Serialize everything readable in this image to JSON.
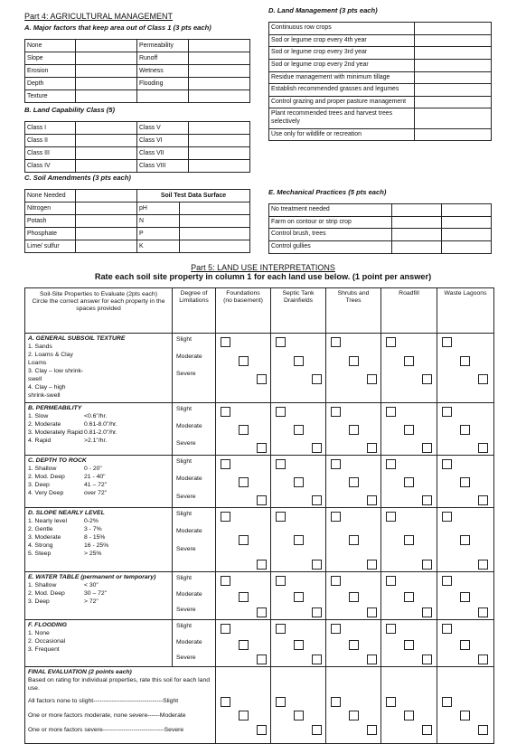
{
  "part4": {
    "title": "Part 4: AGRICULTURAL MANAGEMENT",
    "a_title": "A. Major factors that keep area out of Class 1 (3 pts each)",
    "a_rows": [
      [
        "None",
        "Permeability"
      ],
      [
        "Slope",
        "Runoff"
      ],
      [
        "Erosion",
        "Wetness"
      ],
      [
        "Depth",
        "Flooding"
      ],
      [
        "Texture",
        ""
      ]
    ],
    "b_title": "B. Land Capability Class (5)",
    "b_rows": [
      [
        "Class I",
        "Class V"
      ],
      [
        "Class II",
        "Class VI"
      ],
      [
        "Class III",
        "Class VII"
      ],
      [
        "Class IV",
        "Class VIII"
      ]
    ],
    "c_title": "C. Soil Amendments (3 pts each)",
    "c_header": [
      "None Needed",
      "Soil Test Data Surface"
    ],
    "c_rows": [
      [
        "Nitrogen",
        "pH"
      ],
      [
        "Potash",
        "N"
      ],
      [
        "Phosphate",
        "P"
      ],
      [
        "Lime/ sulfur",
        "K"
      ]
    ],
    "d_title": "D. Land Management (3 pts each)",
    "d_rows": [
      "Continuous row crops",
      "Sod or legume crop every 4th year",
      "Sod or legume crop every 3rd year",
      "Sod or legume crop every 2nd year",
      "Residue management with minimum tillage",
      "Establish recommended grasses and legumes",
      "Control grazing and proper pasture management",
      "Plant recommended trees and harvest trees selectively",
      "Use only for wildlife or recreation"
    ],
    "e_title": "E. Mechanical Practices (5 pts each)",
    "e_rows": [
      "No treatment needed",
      "Farm on contour or strip crop",
      "Control brush, trees",
      "Control gullies"
    ]
  },
  "part5": {
    "title": "Part 5: LAND USE INTERPRETATIONS",
    "subtitle": "Rate each soil site property in column 1 for each land use below. (1 point per answer)",
    "col1_header": "Soil-Site Properties to Evaluate (2pts each)",
    "col1_sub": "Circle the correct answer for each property in the spaces provided",
    "degree_header": "Degree of Limitations",
    "uses": [
      {
        "name": "Foundations",
        "sub": "(no basement)"
      },
      {
        "name": "Septic Tank",
        "sub": "Drainfields"
      },
      {
        "name": "Shrubs and",
        "sub": "Trees"
      },
      {
        "name": "Roadfill",
        "sub": ""
      },
      {
        "name": "Waste Lagoons",
        "sub": ""
      }
    ],
    "sections": [
      {
        "title": "A. GENERAL SUBSOIL TEXTURE",
        "items": [
          [
            "1. Sands",
            ""
          ],
          [
            "2. Loams & Clay Loams",
            ""
          ],
          [
            "3. Clay – low shrink-swell",
            ""
          ],
          [
            "4. Clay – high shrink-swell",
            ""
          ]
        ]
      },
      {
        "title": "B. PERMEABILITY",
        "items": [
          [
            "1. Slow",
            "<0.6\"/hr."
          ],
          [
            "2. Moderate",
            "0.61-8.0\"/hr."
          ],
          [
            "3. Moderately Rapid",
            "0.81-2.0\"/hr."
          ],
          [
            "4. Rapid",
            ">2.1\"/hr."
          ]
        ]
      },
      {
        "title": "C. DEPTH TO ROCK",
        "items": [
          [
            "1. Shallow",
            "0 - 20\""
          ],
          [
            "2. Mod. Deep",
            "21 - 40\""
          ],
          [
            "3. Deep",
            "41 – 72\""
          ],
          [
            "4. Very Deep",
            "over 72\""
          ]
        ]
      },
      {
        "title": "D. SLOPE NEARLY LEVEL",
        "items": [
          [
            "1. Nearly level",
            "0-2%"
          ],
          [
            "2. Gentle",
            "3 - 7%"
          ],
          [
            "3. Moderate",
            "8 - 15%"
          ],
          [
            "4. Strong",
            "16 - 25%"
          ],
          [
            "5. Steep",
            "> 25%"
          ]
        ]
      },
      {
        "title": "E. WATER TABLE (permanent or temporary)",
        "items": [
          [
            "1. Shallow",
            "< 30\""
          ],
          [
            "2. Mod. Deep",
            "30 – 72\""
          ],
          [
            "3. Deep",
            "> 72\""
          ]
        ]
      },
      {
        "title": "F. FLOODING",
        "items": [
          [
            "1. None",
            ""
          ],
          [
            "2. Occasional",
            ""
          ],
          [
            "3. Frequent",
            ""
          ]
        ]
      }
    ],
    "degrees": [
      "Slight",
      "Moderate",
      "Severe"
    ],
    "final": {
      "title": "FINAL EVALUATION (2 points each)",
      "text": "Based on rating for individual properties, rate this soil for each land use.",
      "lines": [
        "All factors none to slight----------------------------------Slight",
        "One or more factors moderate, none severe------Moderate",
        "One or more factors severe------------------------------Severe"
      ]
    }
  }
}
